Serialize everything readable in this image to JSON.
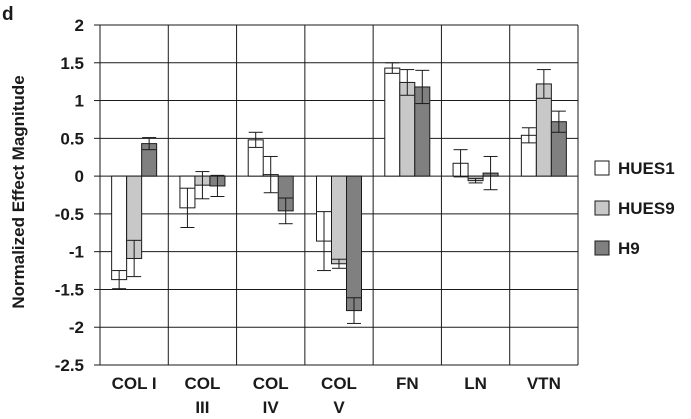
{
  "panel_label": "d",
  "chart_data": {
    "type": "bar",
    "title": "",
    "xlabel": "",
    "ylabel": "Normalized Effect Magnitude",
    "ylim": [
      -2.5,
      2
    ],
    "yticks": [
      2,
      1.5,
      1,
      0.5,
      0,
      -0.5,
      -1,
      -1.5,
      -2,
      -2.5
    ],
    "ytick_labels": [
      "2",
      "1.5",
      "1",
      "0.5",
      "0",
      "-0.5",
      "-1",
      "-1.5",
      "-2",
      "-2.5"
    ],
    "categories": [
      [
        "COL I"
      ],
      [
        "COL",
        "III"
      ],
      [
        "COL",
        "IV"
      ],
      [
        "COL",
        "V"
      ],
      [
        "FN"
      ],
      [
        "LN"
      ],
      [
        "VTN"
      ]
    ],
    "grid": true,
    "legend_position": "right",
    "series": [
      {
        "name": "HUES1",
        "color": "#ffffff",
        "values": [
          -1.37,
          -0.42,
          0.48,
          -0.86,
          1.43,
          0.17,
          0.54
        ],
        "errors": [
          0.12,
          0.26,
          0.1,
          0.39,
          0.07,
          0.18,
          0.1
        ]
      },
      {
        "name": "HUES9",
        "color": "#c8c8c8",
        "values": [
          -1.09,
          -0.12,
          0.02,
          -1.16,
          1.24,
          -0.06,
          1.22
        ],
        "errors": [
          0.24,
          0.18,
          0.24,
          0.06,
          0.17,
          0.03,
          0.19
        ]
      },
      {
        "name": "H9",
        "color": "#808080",
        "values": [
          0.43,
          -0.13,
          -0.46,
          -1.78,
          1.18,
          0.04,
          0.72
        ],
        "errors": [
          0.08,
          0.14,
          0.17,
          0.17,
          0.22,
          0.22,
          0.14
        ]
      }
    ]
  }
}
